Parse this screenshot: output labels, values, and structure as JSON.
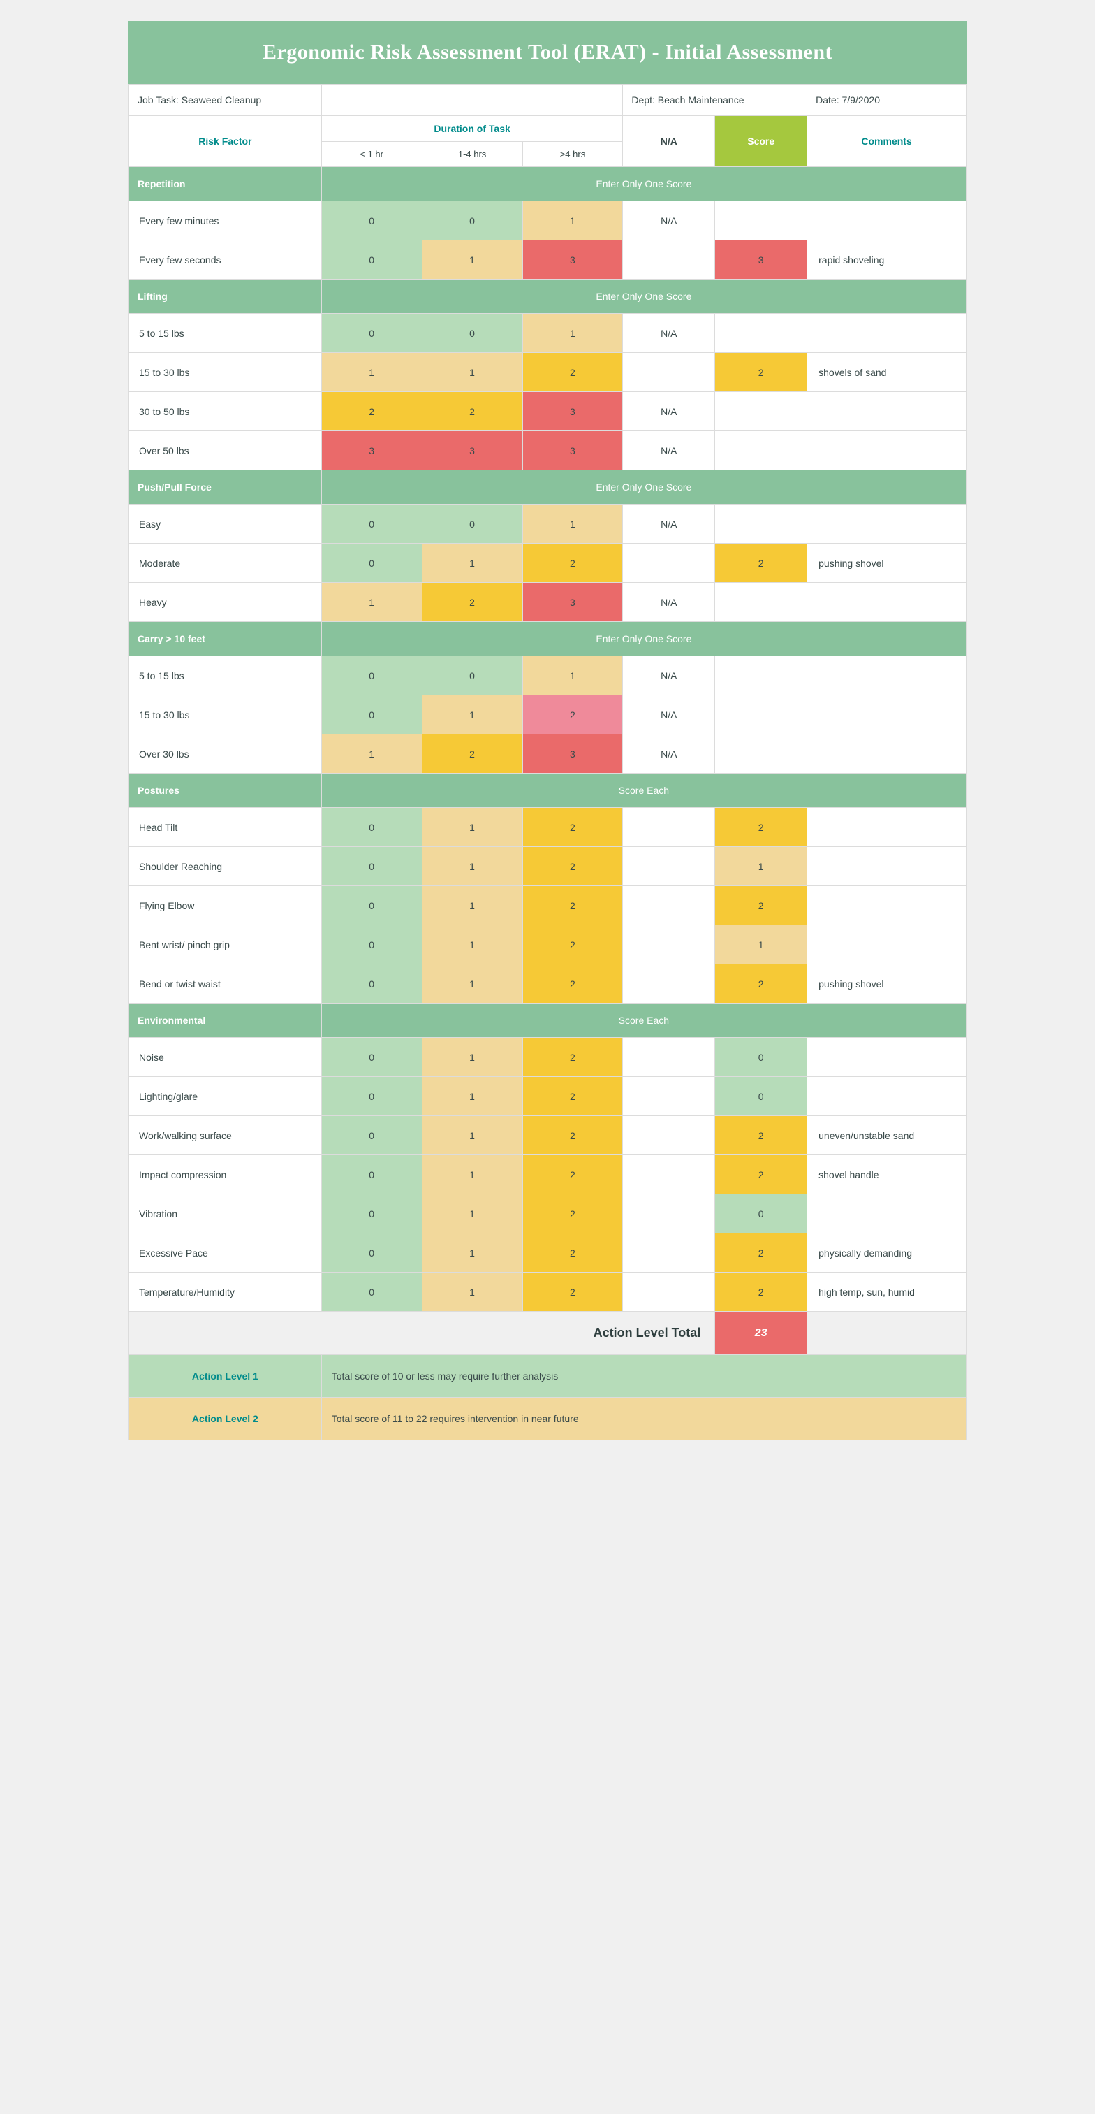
{
  "title": "Ergonomic Risk Assessment Tool (ERAT) - Initial Assessment",
  "info": {
    "job_task_label": "Job Task: Seaweed Cleanup",
    "dept_label": "Dept: Beach Maintenance",
    "date_label": "Date: 7/9/2020"
  },
  "headers": {
    "risk_factor": "Risk Factor",
    "duration": "Duration of Task",
    "na": "N/A",
    "score": "Score",
    "comments": "Comments",
    "lt1": "< 1 hr",
    "h14": "1-4 hrs",
    "gt4": ">4 hrs"
  },
  "banner_one": "Enter Only One Score",
  "banner_each": "Score Each",
  "colors": {
    "section_bg": "#88c29c",
    "lgreen": "#b6dcb9",
    "tan": "#f2d89b",
    "yellow": "#f6c936",
    "pink": "#ef8a9a",
    "red": "#ea6a6a",
    "lime": "#a5c83e",
    "teal_text": "#008b8b"
  },
  "sections": [
    {
      "name": "Repetition",
      "banner": "one",
      "rows": [
        {
          "label": "Every few minutes",
          "cells": [
            "0",
            "0",
            "1"
          ],
          "cell_colors": [
            "lgreen",
            "lgreen",
            "tan"
          ],
          "na": "N/A",
          "score": "",
          "score_color": "white",
          "comment": ""
        },
        {
          "label": "Every few seconds",
          "cells": [
            "0",
            "1",
            "3"
          ],
          "cell_colors": [
            "lgreen",
            "tan",
            "red"
          ],
          "na": "",
          "score": "3",
          "score_color": "red",
          "comment": "rapid shoveling"
        }
      ]
    },
    {
      "name": "Lifting",
      "banner": "one",
      "rows": [
        {
          "label": "5 to 15 lbs",
          "cells": [
            "0",
            "0",
            "1"
          ],
          "cell_colors": [
            "lgreen",
            "lgreen",
            "tan"
          ],
          "na": "N/A",
          "score": "",
          "score_color": "white",
          "comment": ""
        },
        {
          "label": "15 to 30 lbs",
          "cells": [
            "1",
            "1",
            "2"
          ],
          "cell_colors": [
            "tan",
            "tan",
            "yellow"
          ],
          "na": "",
          "score": "2",
          "score_color": "yellow",
          "comment": "shovels of sand"
        },
        {
          "label": "30 to 50 lbs",
          "cells": [
            "2",
            "2",
            "3"
          ],
          "cell_colors": [
            "yellow",
            "yellow",
            "red"
          ],
          "na": "N/A",
          "score": "",
          "score_color": "white",
          "comment": ""
        },
        {
          "label": "Over 50 lbs",
          "cells": [
            "3",
            "3",
            "3"
          ],
          "cell_colors": [
            "red",
            "red",
            "red"
          ],
          "na": "N/A",
          "score": "",
          "score_color": "white",
          "comment": ""
        }
      ]
    },
    {
      "name": "Push/Pull Force",
      "banner": "one",
      "rows": [
        {
          "label": "Easy",
          "cells": [
            "0",
            "0",
            "1"
          ],
          "cell_colors": [
            "lgreen",
            "lgreen",
            "tan"
          ],
          "na": "N/A",
          "score": "",
          "score_color": "white",
          "comment": ""
        },
        {
          "label": "Moderate",
          "cells": [
            "0",
            "1",
            "2"
          ],
          "cell_colors": [
            "lgreen",
            "tan",
            "yellow"
          ],
          "na": "",
          "score": "2",
          "score_color": "yellow",
          "comment": "pushing shovel"
        },
        {
          "label": "Heavy",
          "cells": [
            "1",
            "2",
            "3"
          ],
          "cell_colors": [
            "tan",
            "yellow",
            "red"
          ],
          "na": "N/A",
          "score": "",
          "score_color": "white",
          "comment": ""
        }
      ]
    },
    {
      "name": "Carry > 10 feet",
      "banner": "one",
      "rows": [
        {
          "label": "5 to 15 lbs",
          "cells": [
            "0",
            "0",
            "1"
          ],
          "cell_colors": [
            "lgreen",
            "lgreen",
            "tan"
          ],
          "na": "N/A",
          "score": "",
          "score_color": "white",
          "comment": ""
        },
        {
          "label": "15 to 30 lbs",
          "cells": [
            "0",
            "1",
            "2"
          ],
          "cell_colors": [
            "lgreen",
            "tan",
            "pink"
          ],
          "na": "N/A",
          "score": "",
          "score_color": "white",
          "comment": ""
        },
        {
          "label": "Over 30 lbs",
          "cells": [
            "1",
            "2",
            "3"
          ],
          "cell_colors": [
            "tan",
            "yellow",
            "red"
          ],
          "na": "N/A",
          "score": "",
          "score_color": "white",
          "comment": ""
        }
      ]
    },
    {
      "name": "Postures",
      "banner": "each",
      "rows": [
        {
          "label": "Head Tilt",
          "cells": [
            "0",
            "1",
            "2"
          ],
          "cell_colors": [
            "lgreen",
            "tan",
            "yellow"
          ],
          "na": "",
          "score": "2",
          "score_color": "yellow",
          "comment": ""
        },
        {
          "label": "Shoulder Reaching",
          "cells": [
            "0",
            "1",
            "2"
          ],
          "cell_colors": [
            "lgreen",
            "tan",
            "yellow"
          ],
          "na": "",
          "score": "1",
          "score_color": "tan",
          "comment": ""
        },
        {
          "label": "Flying Elbow",
          "cells": [
            "0",
            "1",
            "2"
          ],
          "cell_colors": [
            "lgreen",
            "tan",
            "yellow"
          ],
          "na": "",
          "score": "2",
          "score_color": "yellow",
          "comment": ""
        },
        {
          "label": "Bent wrist/ pinch grip",
          "cells": [
            "0",
            "1",
            "2"
          ],
          "cell_colors": [
            "lgreen",
            "tan",
            "yellow"
          ],
          "na": "",
          "score": "1",
          "score_color": "tan",
          "comment": ""
        },
        {
          "label": "Bend or twist waist",
          "cells": [
            "0",
            "1",
            "2"
          ],
          "cell_colors": [
            "lgreen",
            "tan",
            "yellow"
          ],
          "na": "",
          "score": "2",
          "score_color": "yellow",
          "comment": "pushing shovel"
        }
      ]
    },
    {
      "name": "Environmental",
      "banner": "each",
      "rows": [
        {
          "label": "Noise",
          "cells": [
            "0",
            "1",
            "2"
          ],
          "cell_colors": [
            "lgreen",
            "tan",
            "yellow"
          ],
          "na": "",
          "score": "0",
          "score_color": "lgreen",
          "comment": ""
        },
        {
          "label": "Lighting/glare",
          "cells": [
            "0",
            "1",
            "2"
          ],
          "cell_colors": [
            "lgreen",
            "tan",
            "yellow"
          ],
          "na": "",
          "score": "0",
          "score_color": "lgreen",
          "comment": ""
        },
        {
          "label": "Work/walking surface",
          "cells": [
            "0",
            "1",
            "2"
          ],
          "cell_colors": [
            "lgreen",
            "tan",
            "yellow"
          ],
          "na": "",
          "score": "2",
          "score_color": "yellow",
          "comment": "uneven/unstable sand"
        },
        {
          "label": "Impact compression",
          "cells": [
            "0",
            "1",
            "2"
          ],
          "cell_colors": [
            "lgreen",
            "tan",
            "yellow"
          ],
          "na": "",
          "score": "2",
          "score_color": "yellow",
          "comment": "shovel handle"
        },
        {
          "label": "Vibration",
          "cells": [
            "0",
            "1",
            "2"
          ],
          "cell_colors": [
            "lgreen",
            "tan",
            "yellow"
          ],
          "na": "",
          "score": "0",
          "score_color": "lgreen",
          "comment": ""
        },
        {
          "label": "Excessive Pace",
          "cells": [
            "0",
            "1",
            "2"
          ],
          "cell_colors": [
            "lgreen",
            "tan",
            "yellow"
          ],
          "na": "",
          "score": "2",
          "score_color": "yellow",
          "comment": "physically demanding"
        },
        {
          "label": "Temperature/Humidity",
          "cells": [
            "0",
            "1",
            "2"
          ],
          "cell_colors": [
            "lgreen",
            "tan",
            "yellow"
          ],
          "na": "",
          "score": "2",
          "score_color": "yellow",
          "comment": "high temp, sun, humid"
        }
      ]
    }
  ],
  "total": {
    "label": "Action Level Total",
    "value": "23"
  },
  "action_levels": [
    {
      "label": "Action Level 1",
      "text": "Total score of 10 or less may require further analysis",
      "bg": "lgreen"
    },
    {
      "label": "Action Level 2",
      "text": "Total score of 11 to 22 requires intervention in near future",
      "bg": "tan"
    }
  ]
}
